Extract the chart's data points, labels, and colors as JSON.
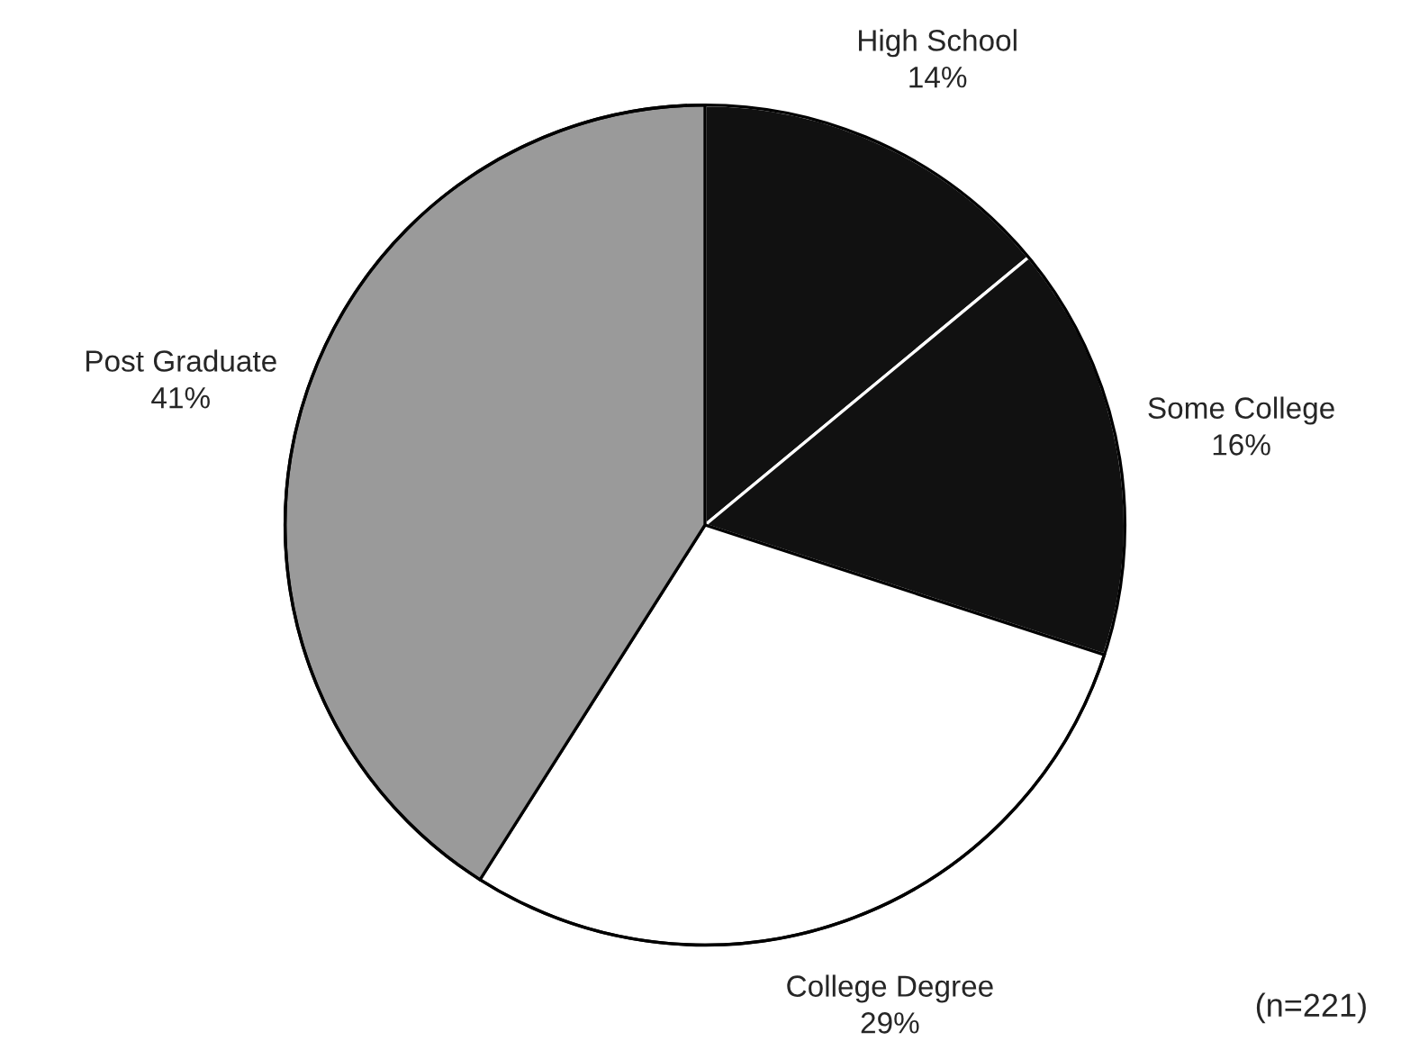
{
  "chart_data": {
    "type": "pie",
    "categories": [
      "High School",
      "Some College",
      "College Degree",
      "Post Graduate"
    ],
    "values": [
      14,
      16,
      29,
      41
    ],
    "colors": [
      "#111111",
      "#111111",
      "#ffffff",
      "#9a9a9a"
    ],
    "value_labels": [
      "14%",
      "16%",
      "29%",
      "41%"
    ],
    "legend": false,
    "annotations": [
      "(n=221)"
    ]
  }
}
